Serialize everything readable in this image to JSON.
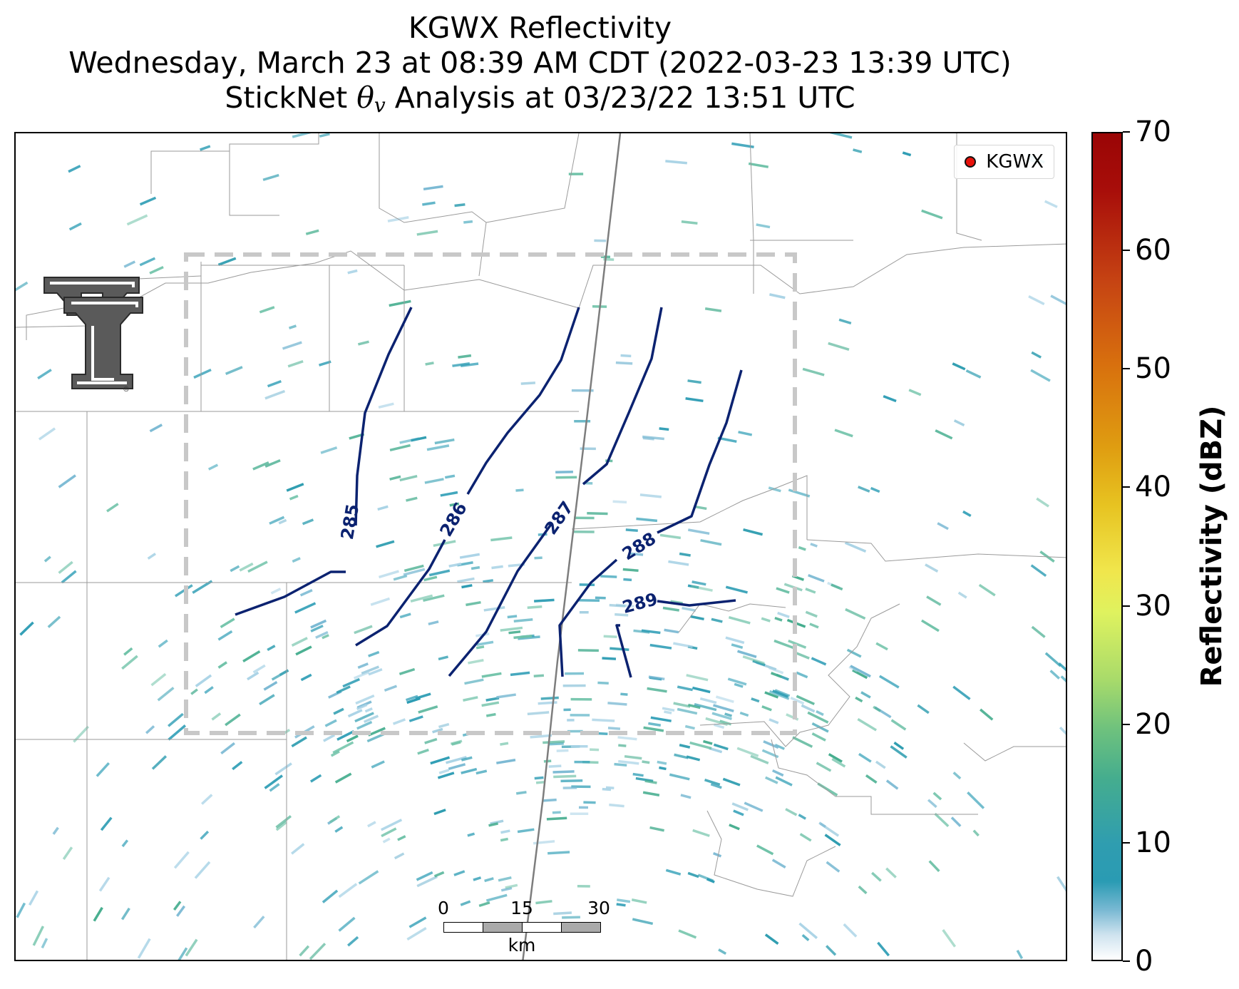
{
  "title": {
    "line1": "KGWX Reflectivity",
    "line2": "Wednesday, March 23 at 08:39 AM CDT (2022-03-23 13:39 UTC)",
    "line3_prefix": "StickNet",
    "line3_symbol": "θ",
    "line3_subscript": "v",
    "line3_suffix": "Analysis at 03/23/22 13:51 UTC"
  },
  "legend": {
    "label": "KGWX",
    "marker_color": "#e8120b"
  },
  "colorbar": {
    "label": "Reflectivity (dBZ)",
    "ticks": [
      "0",
      "10",
      "20",
      "30",
      "40",
      "50",
      "60",
      "70"
    ],
    "min": 0,
    "max": 70
  },
  "contours": {
    "color": "#0b2270",
    "labels": [
      "285",
      "286",
      "287",
      "288",
      "289"
    ]
  },
  "scale_bar": {
    "ticks": [
      "0",
      "15",
      "30"
    ],
    "unit": "km"
  },
  "logo": {
    "name": "Texas Tech Double T"
  },
  "colors": {
    "reflectivity_low": "#2a9bb3",
    "reflectivity_light": "#a9d3e6",
    "analysis_box": "#c8c8c8"
  }
}
